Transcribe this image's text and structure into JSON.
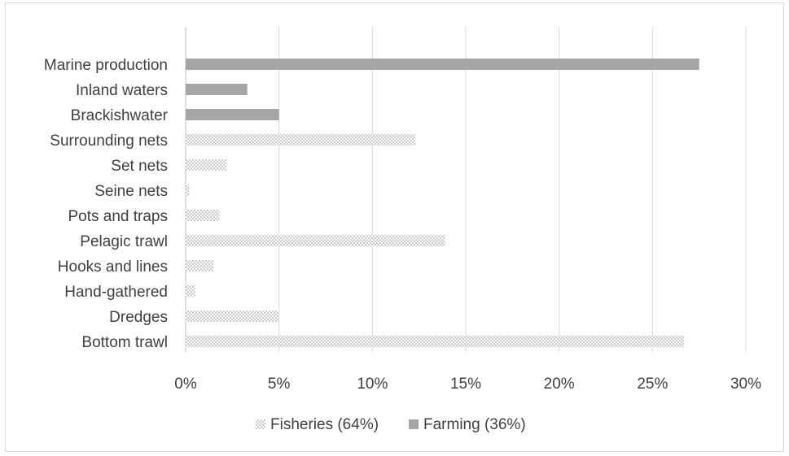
{
  "chart_data": {
    "type": "bar",
    "orientation": "horizontal",
    "categories": [
      "Marine production",
      "Inland waters",
      "Brackishwater",
      "Surrounding nets",
      "Set nets",
      "Seine nets",
      "Pots and traps",
      "Pelagic trawl",
      "Hooks and lines",
      "Hand-gathered",
      "Dredges",
      "Bottom trawl"
    ],
    "series": [
      {
        "name": "Fisheries (64%)",
        "pattern": "dotted",
        "color": "#a6a6a6",
        "values": [
          null,
          null,
          null,
          12.3,
          2.2,
          0.2,
          1.8,
          13.9,
          1.5,
          0.5,
          5.0,
          26.7
        ]
      },
      {
        "name": "Farming (36%)",
        "pattern": "solid",
        "color": "#a6a6a6",
        "values": [
          27.5,
          3.3,
          5.0,
          null,
          null,
          null,
          null,
          null,
          null,
          null,
          null,
          null
        ]
      }
    ],
    "xlim": [
      0,
      30
    ],
    "xticks": [
      0,
      5,
      10,
      15,
      20,
      25,
      30
    ],
    "xtick_labels": [
      "0%",
      "5%",
      "10%",
      "15%",
      "20%",
      "25%",
      "30%"
    ],
    "grid": true,
    "legend_position": "bottom",
    "title": "",
    "xlabel": "",
    "ylabel": ""
  }
}
